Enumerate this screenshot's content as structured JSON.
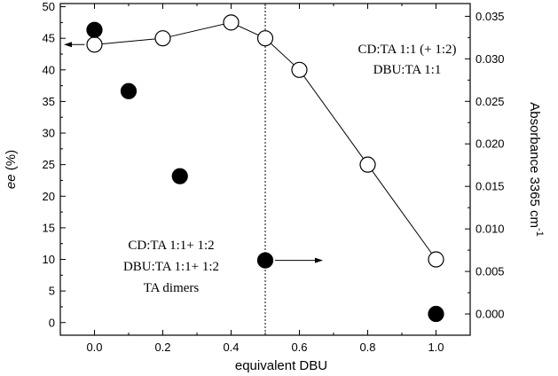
{
  "chart_data": {
    "type": "scatter",
    "xlabel": "equivalent DBU",
    "ylabel_left": "ee (%)",
    "ylabel_right": "Absorbance 3365 cm-1",
    "xlim": [
      -0.1,
      1.1
    ],
    "ylim_left": [
      -2,
      50.5
    ],
    "ylim_right": [
      -0.0025,
      0.0365
    ],
    "x_ticks": [
      0.0,
      0.2,
      0.4,
      0.6,
      0.8,
      1.0
    ],
    "x_tick_labels": [
      "0.0",
      "0.2",
      "0.4",
      "0.6",
      "0.8",
      "1.0"
    ],
    "y_left_ticks": [
      0,
      5,
      10,
      15,
      20,
      25,
      30,
      35,
      40,
      45,
      50
    ],
    "y_left_tick_labels": [
      "0",
      "5",
      "10",
      "15",
      "20",
      "25",
      "30",
      "35",
      "40",
      "45",
      "50"
    ],
    "y_right_ticks": [
      0.0,
      0.005,
      0.01,
      0.015,
      0.02,
      0.025,
      0.03,
      0.035
    ],
    "y_right_tick_labels": [
      "0.000",
      "0.005",
      "0.010",
      "0.015",
      "0.020",
      "0.025",
      "0.030",
      "0.035"
    ],
    "series": [
      {
        "axis": "left",
        "marker": "open-circle",
        "connected": true,
        "x": [
          0.0,
          0.2,
          0.4,
          0.5,
          0.6,
          0.8,
          1.0
        ],
        "y": [
          44,
          45,
          47.5,
          45,
          40,
          25,
          10
        ]
      },
      {
        "axis": "right",
        "marker": "filled-circle",
        "connected": false,
        "x": [
          0.0,
          0.1,
          0.25,
          0.5,
          1.0
        ],
        "y": [
          0.0334,
          0.0262,
          0.0162,
          0.0063,
          0.0
        ]
      }
    ],
    "vline": {
      "x": 0.5,
      "style": "dotted"
    },
    "annotations": {
      "top_right": [
        "CD:TA 1:1 (+ 1:2)",
        "DBU:TA 1:1"
      ],
      "bottom_left": [
        "CD:TA 1:1+ 1:2",
        "DBU:TA 1:1+ 1:2",
        "TA dimers"
      ]
    },
    "grid": false,
    "legend": "none"
  }
}
